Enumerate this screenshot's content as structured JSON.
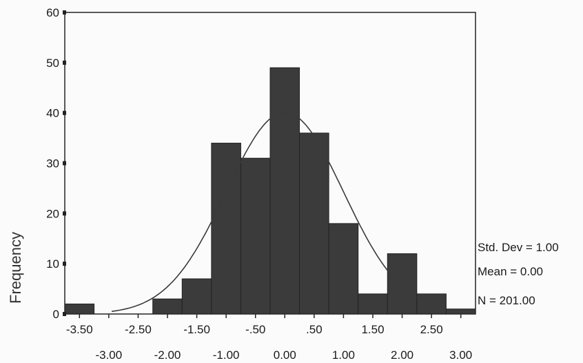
{
  "chart_data": {
    "type": "bar",
    "subtype": "histogram",
    "title": "",
    "xlabel": "",
    "ylabel": "Frequency",
    "ylim": [
      0,
      60
    ],
    "xlim": [
      -3.75,
      3.25
    ],
    "bin_width": 0.5,
    "bins": [
      {
        "center": -3.5,
        "count": 2
      },
      {
        "center": -3.0,
        "count": 0
      },
      {
        "center": -2.5,
        "count": 0
      },
      {
        "center": -2.0,
        "count": 3
      },
      {
        "center": -1.5,
        "count": 7
      },
      {
        "center": -1.0,
        "count": 34
      },
      {
        "center": -0.5,
        "count": 31
      },
      {
        "center": 0.0,
        "count": 49
      },
      {
        "center": 0.5,
        "count": 36
      },
      {
        "center": 1.0,
        "count": 18
      },
      {
        "center": 1.5,
        "count": 4
      },
      {
        "center": 2.0,
        "count": 12
      },
      {
        "center": 2.5,
        "count": 4
      },
      {
        "center": 3.0,
        "count": 1
      }
    ],
    "y_ticks": [
      0,
      10,
      20,
      30,
      40,
      50,
      60
    ],
    "x_ticks_top": [
      -3.5,
      -2.5,
      -1.5,
      -0.5,
      0.5,
      1.5,
      2.5
    ],
    "x_tick_labels_top": [
      "-3.50",
      "-2.50",
      "-1.50",
      "-.50",
      ".50",
      "1.50",
      "2.50"
    ],
    "x_ticks_bottom": [
      -3.0,
      -2.0,
      -1.0,
      0.0,
      1.0,
      2.0,
      3.0
    ],
    "x_tick_labels_bottom": [
      "-3.00",
      "-2.00",
      "-1.00",
      "0.00",
      "1.00",
      "2.00",
      "3.00"
    ],
    "normal_curve": {
      "mean": 0.0,
      "std": 1.0,
      "n": 201
    },
    "stats": {
      "std_dev": "Std. Dev = 1.00",
      "mean": "Mean = 0.00",
      "n": "N = 201.00"
    },
    "colors": {
      "bar": "#3b3b3b",
      "axis": "#222222",
      "curve": "#3a3a3a",
      "background": "#fbfbfb"
    }
  }
}
